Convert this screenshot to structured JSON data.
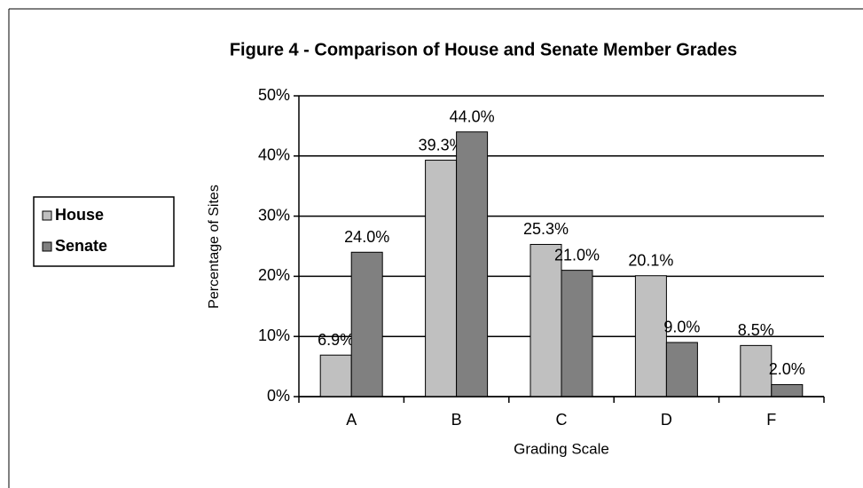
{
  "chart_data": {
    "type": "bar",
    "title": "Figure 4 - Comparison of House and Senate Member Grades",
    "xlabel": "Grading Scale",
    "ylabel": "Percentage of Sites",
    "categories": [
      "A",
      "B",
      "C",
      "D",
      "F"
    ],
    "series": [
      {
        "name": "House",
        "color": "#c0c0c0",
        "values": [
          6.9,
          39.3,
          25.3,
          20.1,
          8.5
        ],
        "value_labels": [
          "6.9%",
          "39.3%",
          "25.3%",
          "20.1%",
          "8.5%"
        ]
      },
      {
        "name": "Senate",
        "color": "#808080",
        "values": [
          24.0,
          44.0,
          21.0,
          9.0,
          2.0
        ],
        "value_labels": [
          "24.0%",
          "44.0%",
          "21.0%",
          "9.0%",
          "2.0%"
        ]
      }
    ],
    "ylim": [
      0,
      50
    ],
    "yticks": [
      {
        "value": 0,
        "label": "0%"
      },
      {
        "value": 10,
        "label": "10%"
      },
      {
        "value": 20,
        "label": "20%"
      },
      {
        "value": 30,
        "label": "30%"
      },
      {
        "value": 40,
        "label": "40%"
      },
      {
        "value": 50,
        "label": "50%"
      }
    ],
    "grid": true,
    "legend": "left"
  }
}
